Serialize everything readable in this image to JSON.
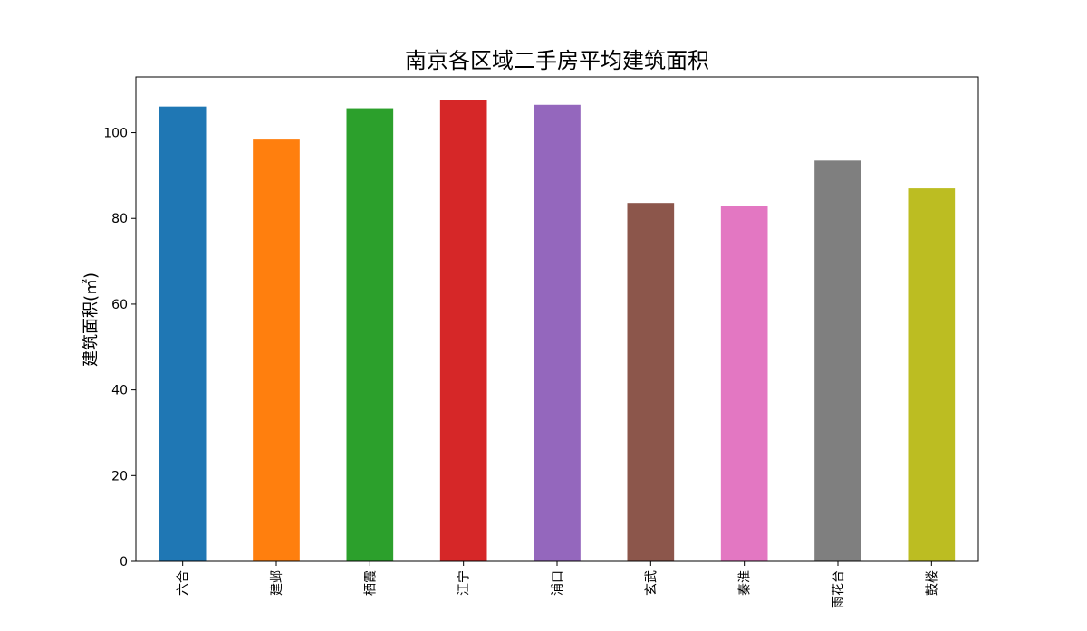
{
  "chart_data": {
    "type": "bar",
    "title": "南京各区域二手房平均建筑面积",
    "ylabel": "建筑面积(㎡)",
    "xlabel": "",
    "ylim": [
      0,
      113
    ],
    "yticks": [
      0,
      20,
      40,
      60,
      80,
      100
    ],
    "categories": [
      "六合",
      "建邺",
      "栖霞",
      "江宁",
      "浦口",
      "玄武",
      "秦淮",
      "雨花台",
      "鼓楼"
    ],
    "values": [
      106.1,
      98.4,
      105.7,
      107.6,
      106.5,
      83.6,
      83.0,
      93.5,
      87.0
    ],
    "colors": [
      "#1f77b4",
      "#ff7f0e",
      "#2ca02c",
      "#d62728",
      "#9467bd",
      "#8c564b",
      "#e377c2",
      "#7f7f7f",
      "#bcbd22"
    ],
    "grid": false,
    "legend": "none"
  }
}
